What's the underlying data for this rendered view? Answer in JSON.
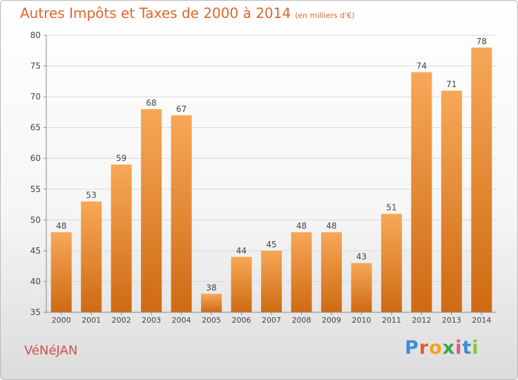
{
  "title": "Autres Impôts et Taxes de 2000 à 2014",
  "unit": "(en milliers d'€)",
  "commune": "VéNéJAN",
  "logo": {
    "letters": [
      "P",
      "r",
      "o",
      "x",
      "i",
      "t",
      "i"
    ],
    "colors": [
      "#3b8fd6",
      "#e85b2c",
      "#f2a31c",
      "#3aa84a",
      "#e84f8c",
      "#3b8fd6",
      "#8bc43f"
    ]
  },
  "colors": {
    "bar": "#f08a2c",
    "bar_light": "#f7a857",
    "bar_dark": "#cf6a12",
    "text": "#e0652e",
    "grid": "#d9d9d9"
  },
  "chart_data": {
    "type": "bar",
    "categories": [
      "2000",
      "2001",
      "2002",
      "2003",
      "2004",
      "2005",
      "2006",
      "2007",
      "2008",
      "2009",
      "2010",
      "2011",
      "2012",
      "2013",
      "2014"
    ],
    "values": [
      48,
      53,
      59,
      68,
      67,
      38,
      44,
      45,
      48,
      48,
      43,
      51,
      74,
      71,
      78
    ],
    "title": "Autres Impôts et Taxes de 2000 à 2014",
    "ylim": [
      35,
      80
    ],
    "yticks": [
      35,
      40,
      45,
      50,
      55,
      60,
      65,
      70,
      75,
      80
    ],
    "grid": true,
    "data_labels": true
  }
}
